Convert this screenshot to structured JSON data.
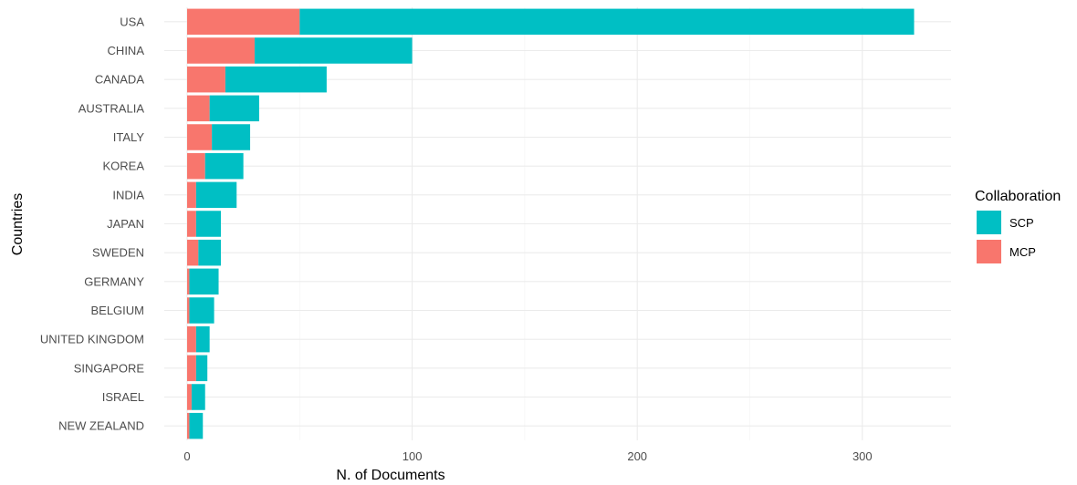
{
  "chart_data": {
    "type": "bar",
    "orientation": "horizontal",
    "stacked": true,
    "xlabel": "N. of Documents",
    "ylabel": "Countries",
    "xlim": [
      0,
      340
    ],
    "xticks": [
      0,
      100,
      200,
      300
    ],
    "grid": true,
    "legend": {
      "title": "Collaboration",
      "position": "right"
    },
    "categories": [
      "USA",
      "CHINA",
      "CANADA",
      "AUSTRALIA",
      "ITALY",
      "KOREA",
      "INDIA",
      "JAPAN",
      "SWEDEN",
      "GERMANY",
      "BELGIUM",
      "UNITED KINGDOM",
      "SINGAPORE",
      "ISRAEL",
      "NEW ZEALAND"
    ],
    "series": [
      {
        "name": "MCP",
        "color": "#F8766D",
        "values": [
          50,
          30,
          17,
          10,
          11,
          8,
          4,
          4,
          5,
          1,
          1,
          4,
          4,
          2,
          1
        ]
      },
      {
        "name": "SCP",
        "color": "#00BFC4",
        "values": [
          273,
          70,
          45,
          22,
          17,
          17,
          18,
          11,
          10,
          13,
          11,
          6,
          5,
          6,
          6
        ]
      }
    ],
    "legend_order": [
      "SCP",
      "MCP"
    ]
  }
}
